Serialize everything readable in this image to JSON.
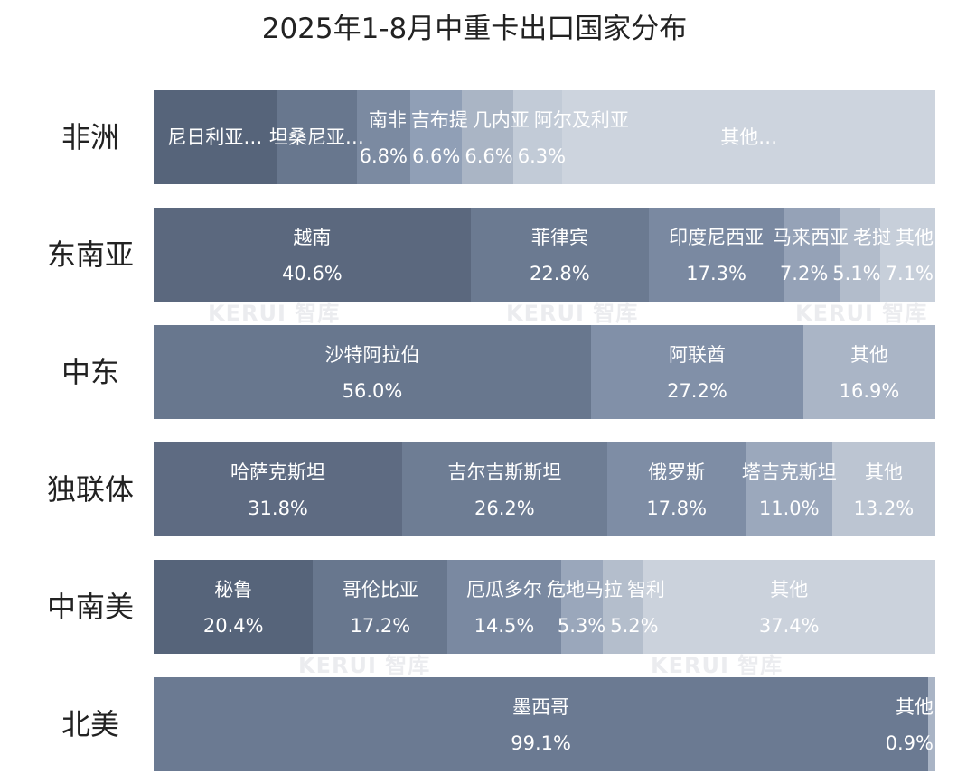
{
  "chart_data": {
    "type": "bar",
    "orientation": "horizontal",
    "stacked": "100%",
    "title": "2025年1-8月中重卡出口国家分布",
    "grid": false,
    "legend": "none",
    "watermark": "KERUI 智库",
    "rows": [
      {
        "region": "非洲",
        "segments": [
          {
            "name": "尼日利亚…",
            "value": 15.7,
            "label": "",
            "color": "#56647a"
          },
          {
            "name": "坦桑尼亚…",
            "value": 10.3,
            "label": "",
            "color": "#68778e"
          },
          {
            "name": "南非",
            "value": 6.8,
            "label": "6.8%",
            "color": "#7b8aa1"
          },
          {
            "name": "吉布提",
            "value": 6.6,
            "label": "6.6%",
            "color": "#909fb6"
          },
          {
            "name": "几内亚",
            "value": 6.6,
            "label": "6.6%",
            "color": "#aab5c5"
          },
          {
            "name": "阿尔及利亚",
            "value": 6.3,
            "label": "6.3%",
            "color": "#c2cbd7"
          },
          {
            "name": "其他…",
            "value": 47.7,
            "label": "",
            "color": "#cdd4de"
          }
        ]
      },
      {
        "region": "东南亚",
        "segments": [
          {
            "name": "越南",
            "value": 40.6,
            "label": "40.6%",
            "color": "#5b687e"
          },
          {
            "name": "菲律宾",
            "value": 22.8,
            "label": "22.8%",
            "color": "#6b7a91"
          },
          {
            "name": "印度尼西亚",
            "value": 17.3,
            "label": "17.3%",
            "color": "#7a89a1"
          },
          {
            "name": "马来西亚",
            "value": 7.2,
            "label": "7.2%",
            "color": "#95a2b7"
          },
          {
            "name": "老挝",
            "value": 5.1,
            "label": "5.1%",
            "color": "#b2bccb"
          },
          {
            "name": "其他",
            "value": 7.1,
            "label": "7.1%",
            "color": "#c7cfda"
          }
        ]
      },
      {
        "region": "中东",
        "segments": [
          {
            "name": "沙特阿拉伯",
            "value": 56.0,
            "label": "56.0%",
            "color": "#68778e"
          },
          {
            "name": "阿联酋",
            "value": 27.2,
            "label": "27.2%",
            "color": "#8190a8"
          },
          {
            "name": "其他",
            "value": 16.9,
            "label": "16.9%",
            "color": "#aab5c6"
          }
        ]
      },
      {
        "region": "独联体",
        "segments": [
          {
            "name": "哈萨克斯坦",
            "value": 31.8,
            "label": "31.8%",
            "color": "#5e6b82"
          },
          {
            "name": "吉尔吉斯斯坦",
            "value": 26.2,
            "label": "26.2%",
            "color": "#6e7d94"
          },
          {
            "name": "俄罗斯",
            "value": 17.8,
            "label": "17.8%",
            "color": "#7e8da5"
          },
          {
            "name": "塔吉克斯坦",
            "value": 11.0,
            "label": "11.0%",
            "color": "#9ba8bc"
          },
          {
            "name": "其他",
            "value": 13.2,
            "label": "13.2%",
            "color": "#bcc5d2"
          }
        ]
      },
      {
        "region": "中南美",
        "segments": [
          {
            "name": "秘鲁",
            "value": 20.4,
            "label": "20.4%",
            "color": "#56647a"
          },
          {
            "name": "哥伦比亚",
            "value": 17.2,
            "label": "17.2%",
            "color": "#68778e"
          },
          {
            "name": "厄瓜多尔",
            "value": 14.5,
            "label": "14.5%",
            "color": "#7a89a1"
          },
          {
            "name": "危地马拉",
            "value": 5.3,
            "label": "5.3%",
            "color": "#9aa7bb"
          },
          {
            "name": "智利",
            "value": 5.2,
            "label": "5.2%",
            "color": "#b4becc"
          },
          {
            "name": "其他",
            "value": 37.4,
            "label": "37.4%",
            "color": "#cbd2dc"
          }
        ]
      },
      {
        "region": "北美",
        "segments": [
          {
            "name": "墨西哥",
            "value": 99.1,
            "label": "99.1%",
            "color": "#6b7a92"
          },
          {
            "name": "其他",
            "value": 0.9,
            "label": "0.9%",
            "color": "#a9b4c5"
          }
        ]
      }
    ]
  }
}
